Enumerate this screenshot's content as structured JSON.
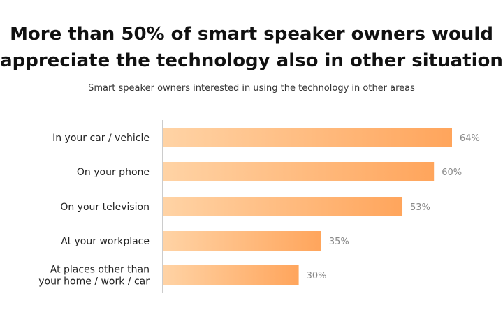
{
  "title_lines": [
    "More than 50% of smart speaker owners would",
    "appreciate the technology also in other situation"
  ],
  "subtitle": "Smart speaker owners interested in using the technology in other areas",
  "colors": {
    "bar_start": "#ffd3a5",
    "bar_end": "#ffa55c",
    "axis": "#999999"
  },
  "chart_data": {
    "type": "bar",
    "orientation": "horizontal",
    "categories": [
      [
        "In your car / vehicle"
      ],
      [
        "On your phone"
      ],
      [
        "On your television"
      ],
      [
        "At your workplace"
      ],
      [
        "At places other than",
        "your home / work / car"
      ]
    ],
    "values": [
      64,
      60,
      53,
      35,
      30
    ],
    "value_labels": [
      "64%",
      "60%",
      "53%",
      "35%",
      "30%"
    ],
    "xlim": [
      0,
      64
    ],
    "grid": false
  }
}
